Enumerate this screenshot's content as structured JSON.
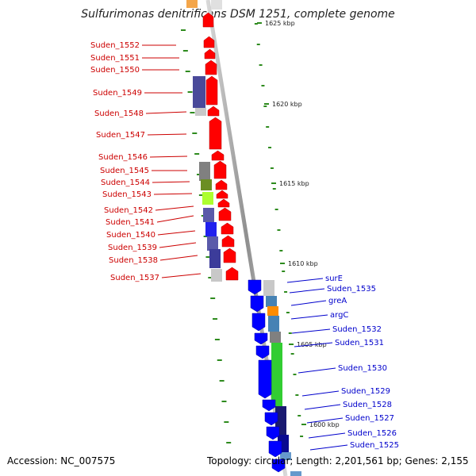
{
  "title": "Sulfurimonas denitrificans DSM 1251, complete genome",
  "footer": {
    "accession": "Accession: NC_007575",
    "summary": "Topology: circular; Length: 2,201,561 bp; Genes: 2,155"
  },
  "colors": {
    "reverse_strand_gene": "#ff0000",
    "forward_strand_gene": "#0000ff",
    "backbone": "#999999",
    "tick_marks": "#2e8b1e"
  },
  "kbp_ticks": [
    "1625 kbp",
    "1620 kbp",
    "1615 kbp",
    "1610 kbp",
    "1605 kbp",
    "1600 kbp"
  ],
  "left_genes": [
    "Suden_1552",
    "Suden_1551",
    "Suden_1550",
    "Suden_1549",
    "Suden_1548",
    "Suden_1547",
    "Suden_1546",
    "Suden_1545",
    "Suden_1544",
    "Suden_1543",
    "Suden_1542",
    "Suden_1541",
    "Suden_1540",
    "Suden_1539",
    "Suden_1538",
    "Suden_1537"
  ],
  "right_genes": [
    "surE",
    "Suden_1535",
    "greA",
    "argC",
    "Suden_1532",
    "Suden_1531",
    "Suden_1530",
    "Suden_1529",
    "Suden_1528",
    "Suden_1527",
    "Suden_1526",
    "Suden_1525"
  ]
}
